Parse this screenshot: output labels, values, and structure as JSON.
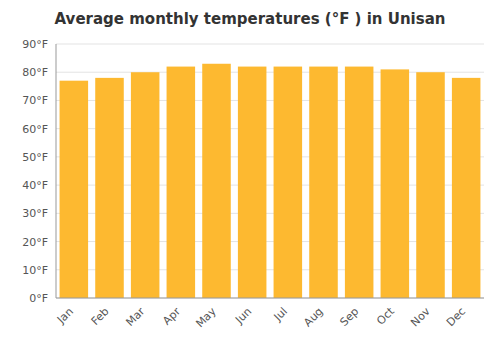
{
  "chart_data": {
    "type": "bar",
    "title": "Average monthly temperatures (°F ) in Unisan",
    "categories": [
      "Jan",
      "Feb",
      "Mar",
      "Apr",
      "May",
      "Jun",
      "Jul",
      "Aug",
      "Sep",
      "Oct",
      "Nov",
      "Dec"
    ],
    "values": [
      77,
      78,
      80,
      82,
      83,
      82,
      82,
      82,
      82,
      81,
      80,
      78
    ],
    "color": "#FDB930",
    "ylim": [
      0,
      90
    ],
    "yticks": [
      {
        "value": 0,
        "label": "0°F"
      },
      {
        "value": 10,
        "label": "10°F"
      },
      {
        "value": 20,
        "label": "20°F"
      },
      {
        "value": 30,
        "label": "30°F"
      },
      {
        "value": 40,
        "label": "40°F"
      },
      {
        "value": 50,
        "label": "50°F"
      },
      {
        "value": 60,
        "label": "60°F"
      },
      {
        "value": 70,
        "label": "70°F"
      },
      {
        "value": 80,
        "label": "80°F"
      },
      {
        "value": 90,
        "label": "90°F"
      }
    ],
    "grid": true
  }
}
